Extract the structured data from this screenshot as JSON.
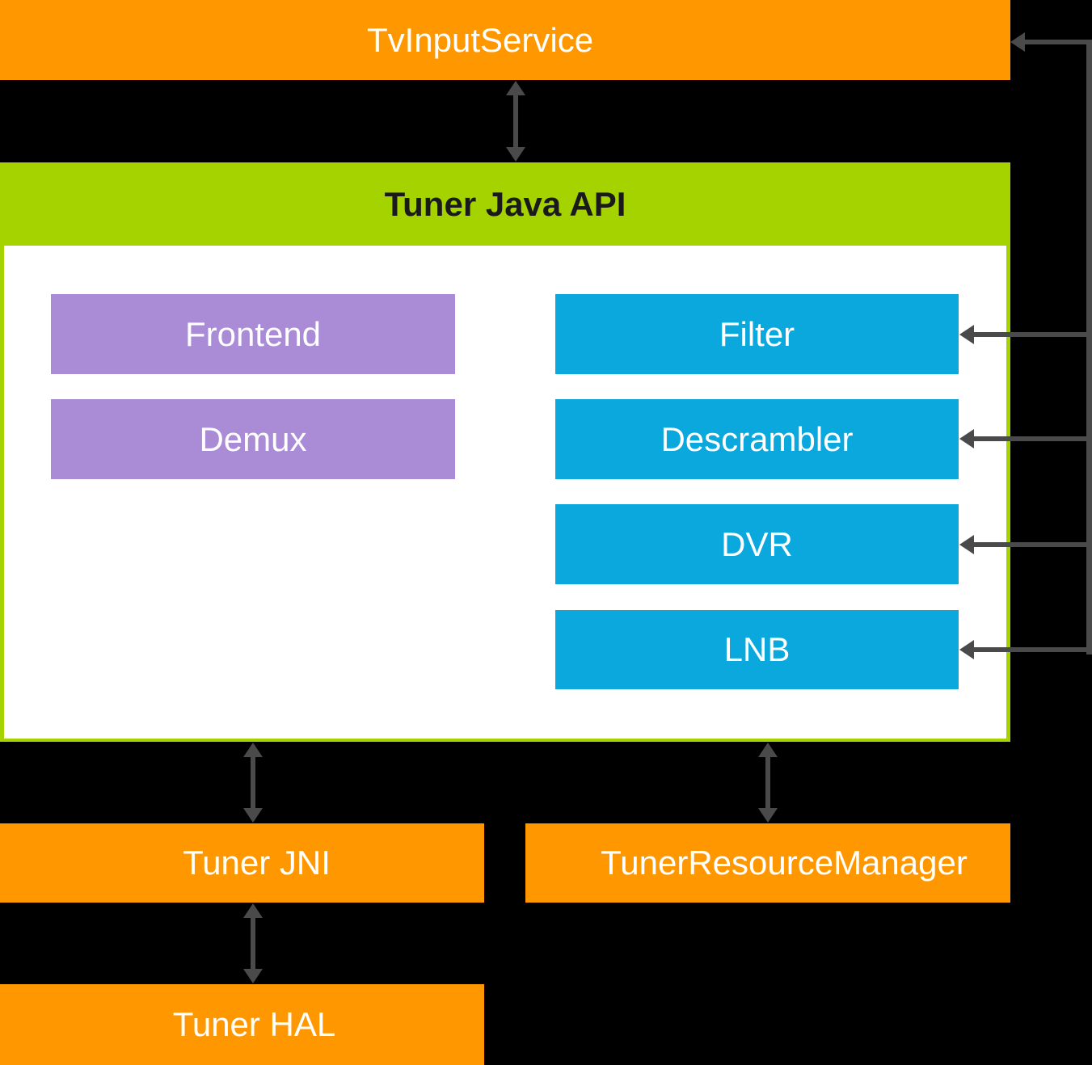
{
  "colors": {
    "background": "#000000",
    "orange": "#FF9800",
    "green": "#A5D300",
    "purple": "#A98BD6",
    "blue": "#0AA8DC",
    "arrow": "#4A4A4A",
    "header_text": "#1A1A1A",
    "label_text": "#FFFFFF"
  },
  "nodes": {
    "tv_input_service": {
      "label": "TvInputService"
    },
    "tuner_java_api": {
      "label": "Tuner Java API"
    },
    "frontend": {
      "label": "Frontend"
    },
    "demux": {
      "label": "Demux"
    },
    "filter": {
      "label": "Filter"
    },
    "descrambler": {
      "label": "Descrambler"
    },
    "dvr": {
      "label": "DVR"
    },
    "lnb": {
      "label": "LNB"
    },
    "tuner_jni": {
      "label": "Tuner JNI"
    },
    "tuner_resource_manager": {
      "label": "TunerResourceManager"
    },
    "tuner_hal": {
      "label": "Tuner HAL"
    }
  }
}
